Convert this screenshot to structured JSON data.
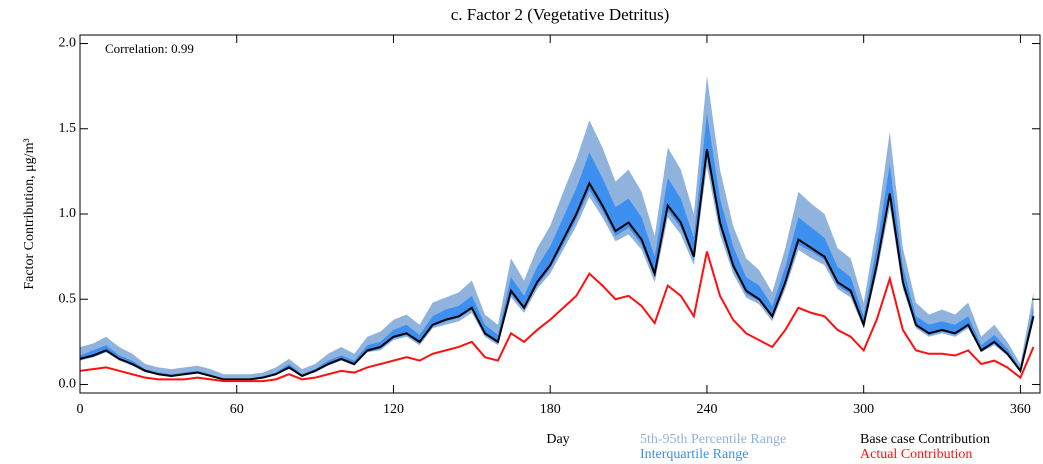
{
  "chart_data": {
    "type": "line",
    "title": "c.  Factor 2 (Vegetative Detritus)",
    "x_label": "Day",
    "y_label": "Factor Contribution,  μg/m³",
    "annotation": "Correlation: 0.99",
    "xlim": [
      0,
      367.5
    ],
    "ylim": [
      -0.05,
      2.05
    ],
    "xticks": [
      0,
      60,
      120,
      180,
      240,
      300,
      360
    ],
    "yticks": [
      {
        "value": 0,
        "label": "0.0"
      },
      0.5,
      {
        "value": 1,
        "label": "1.0"
      },
      1.5,
      {
        "value": 2,
        "label": "2.0"
      }
    ],
    "x": [
      0,
      5,
      10,
      15,
      20,
      25,
      30,
      35,
      40,
      45,
      50,
      55,
      60,
      65,
      70,
      75,
      80,
      85,
      90,
      95,
      100,
      105,
      110,
      115,
      120,
      125,
      130,
      135,
      140,
      145,
      150,
      155,
      160,
      165,
      170,
      175,
      180,
      185,
      190,
      195,
      200,
      205,
      210,
      215,
      220,
      225,
      230,
      235,
      240,
      245,
      250,
      255,
      260,
      265,
      270,
      275,
      280,
      285,
      290,
      295,
      300,
      305,
      310,
      315,
      320,
      325,
      330,
      335,
      340,
      345,
      350,
      355,
      360,
      365
    ],
    "series": [
      {
        "name": "5th-95th Percentile Range",
        "color": "#8fb3dd",
        "low": [
          0.14,
          0.16,
          0.19,
          0.14,
          0.11,
          0.07,
          0.06,
          0.05,
          0.06,
          0.07,
          0.05,
          0.03,
          0.03,
          0.03,
          0.04,
          0.06,
          0.09,
          0.05,
          0.07,
          0.11,
          0.14,
          0.11,
          0.19,
          0.2,
          0.26,
          0.28,
          0.23,
          0.33,
          0.35,
          0.37,
          0.42,
          0.28,
          0.23,
          0.51,
          0.42,
          0.56,
          0.65,
          0.79,
          0.93,
          1.1,
          0.98,
          0.84,
          0.88,
          0.79,
          0.6,
          0.98,
          0.88,
          0.7,
          1.28,
          0.88,
          0.65,
          0.51,
          0.47,
          0.37,
          0.56,
          0.79,
          0.74,
          0.7,
          0.56,
          0.51,
          0.33,
          0.65,
          1.04,
          0.56,
          0.33,
          0.28,
          0.3,
          0.28,
          0.33,
          0.19,
          0.23,
          0.17,
          0.07,
          0.37
        ],
        "high": [
          0.22,
          0.24,
          0.28,
          0.22,
          0.18,
          0.12,
          0.1,
          0.09,
          0.1,
          0.11,
          0.09,
          0.06,
          0.06,
          0.06,
          0.07,
          0.1,
          0.15,
          0.09,
          0.12,
          0.18,
          0.22,
          0.18,
          0.28,
          0.31,
          0.38,
          0.41,
          0.35,
          0.48,
          0.51,
          0.54,
          0.61,
          0.41,
          0.35,
          0.74,
          0.61,
          0.8,
          0.93,
          1.13,
          1.32,
          1.55,
          1.39,
          1.19,
          1.26,
          1.13,
          0.87,
          1.39,
          1.26,
          1.0,
          1.81,
          1.26,
          0.93,
          0.74,
          0.67,
          0.54,
          0.8,
          1.13,
          1.06,
          1.0,
          0.8,
          0.74,
          0.48,
          0.93,
          1.48,
          0.8,
          0.48,
          0.41,
          0.44,
          0.41,
          0.48,
          0.28,
          0.35,
          0.25,
          0.12,
          0.54
        ]
      },
      {
        "name": "Interquartile Range",
        "color": "#3d8ff0",
        "low": [
          0.15,
          0.16,
          0.19,
          0.15,
          0.12,
          0.08,
          0.06,
          0.05,
          0.06,
          0.07,
          0.05,
          0.03,
          0.03,
          0.03,
          0.04,
          0.06,
          0.1,
          0.05,
          0.08,
          0.12,
          0.15,
          0.12,
          0.19,
          0.21,
          0.27,
          0.29,
          0.24,
          0.34,
          0.37,
          0.39,
          0.44,
          0.29,
          0.24,
          0.53,
          0.44,
          0.58,
          0.68,
          0.82,
          0.97,
          1.14,
          1.02,
          0.87,
          0.92,
          0.82,
          0.63,
          1.02,
          0.92,
          0.73,
          1.34,
          0.92,
          0.68,
          0.53,
          0.49,
          0.39,
          0.58,
          0.82,
          0.78,
          0.73,
          0.58,
          0.53,
          0.34,
          0.68,
          1.09,
          0.58,
          0.34,
          0.29,
          0.31,
          0.29,
          0.34,
          0.19,
          0.24,
          0.17,
          0.08,
          0.39
        ],
        "high": [
          0.17,
          0.2,
          0.23,
          0.17,
          0.14,
          0.09,
          0.07,
          0.06,
          0.07,
          0.08,
          0.06,
          0.03,
          0.03,
          0.03,
          0.05,
          0.07,
          0.12,
          0.06,
          0.09,
          0.14,
          0.17,
          0.14,
          0.23,
          0.25,
          0.32,
          0.35,
          0.29,
          0.4,
          0.44,
          0.46,
          0.52,
          0.35,
          0.29,
          0.63,
          0.52,
          0.69,
          0.81,
          0.98,
          1.15,
          1.36,
          1.21,
          1.04,
          1.09,
          0.98,
          0.75,
          1.21,
          1.09,
          0.86,
          1.59,
          1.09,
          0.81,
          0.63,
          0.58,
          0.46,
          0.69,
          0.98,
          0.92,
          0.86,
          0.69,
          0.63,
          0.4,
          0.81,
          1.29,
          0.69,
          0.4,
          0.35,
          0.37,
          0.35,
          0.4,
          0.23,
          0.29,
          0.21,
          0.09,
          0.46
        ]
      },
      {
        "name": "Base case Contribution",
        "color": "#000000",
        "values": [
          0.15,
          0.17,
          0.2,
          0.15,
          0.12,
          0.08,
          0.06,
          0.05,
          0.06,
          0.07,
          0.05,
          0.03,
          0.03,
          0.03,
          0.04,
          0.06,
          0.1,
          0.05,
          0.08,
          0.12,
          0.15,
          0.12,
          0.2,
          0.22,
          0.28,
          0.3,
          0.25,
          0.35,
          0.38,
          0.4,
          0.45,
          0.3,
          0.25,
          0.55,
          0.45,
          0.6,
          0.7,
          0.85,
          1.0,
          1.18,
          1.05,
          0.9,
          0.95,
          0.85,
          0.65,
          1.05,
          0.95,
          0.75,
          1.38,
          0.95,
          0.7,
          0.55,
          0.5,
          0.4,
          0.6,
          0.85,
          0.8,
          0.75,
          0.6,
          0.55,
          0.35,
          0.7,
          1.12,
          0.6,
          0.35,
          0.3,
          0.32,
          0.3,
          0.35,
          0.2,
          0.25,
          0.18,
          0.08,
          0.4
        ]
      },
      {
        "name": "Actual Contribution",
        "color": "#ff1010",
        "values": [
          0.08,
          0.09,
          0.1,
          0.08,
          0.06,
          0.04,
          0.03,
          0.03,
          0.03,
          0.04,
          0.03,
          0.02,
          0.02,
          0.02,
          0.02,
          0.03,
          0.06,
          0.03,
          0.04,
          0.06,
          0.08,
          0.07,
          0.1,
          0.12,
          0.14,
          0.16,
          0.14,
          0.18,
          0.2,
          0.22,
          0.25,
          0.16,
          0.14,
          0.3,
          0.25,
          0.32,
          0.38,
          0.45,
          0.52,
          0.65,
          0.58,
          0.5,
          0.52,
          0.46,
          0.36,
          0.58,
          0.52,
          0.4,
          0.78,
          0.52,
          0.38,
          0.3,
          0.26,
          0.22,
          0.32,
          0.45,
          0.42,
          0.4,
          0.32,
          0.28,
          0.2,
          0.38,
          0.62,
          0.32,
          0.2,
          0.18,
          0.18,
          0.17,
          0.2,
          0.12,
          0.14,
          0.1,
          0.04,
          0.22
        ]
      }
    ]
  }
}
